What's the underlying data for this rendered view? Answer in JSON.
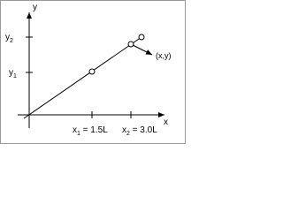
{
  "axes": {
    "y_label": "y",
    "x_label": "x"
  },
  "y_ticks": [
    {
      "name": "y",
      "sub": "2"
    },
    {
      "name": "y",
      "sub": "1"
    }
  ],
  "x_ticks": [
    {
      "name": "x",
      "sub": "1",
      "rest": " = 1.5L"
    },
    {
      "name": "x",
      "sub": "2",
      "rest": " = 3.0L"
    }
  ],
  "point_label": "(x,y)"
}
